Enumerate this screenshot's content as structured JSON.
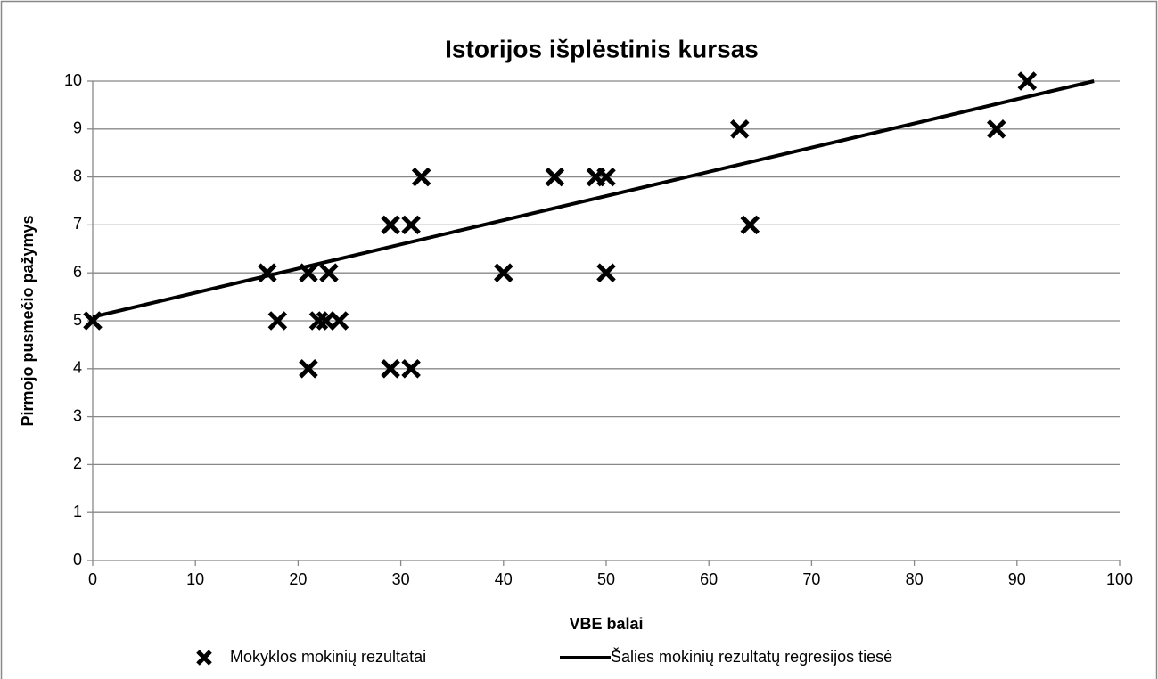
{
  "chart_data": {
    "type": "scatter",
    "title": "Istorijos išplėstinis kursas",
    "x_label": "VBE balai",
    "y_label": "Pirmojo pusmečio pažymys",
    "xlim": [
      0,
      100
    ],
    "xticks": [
      0,
      10,
      20,
      30,
      40,
      50,
      60,
      70,
      80,
      90,
      100
    ],
    "ylim": [
      0,
      10
    ],
    "yticks": [
      0,
      1,
      2,
      3,
      4,
      5,
      6,
      7,
      8,
      9,
      10
    ],
    "grid": true,
    "legend": "bottom",
    "series": [
      {
        "name": "Mokyklos mokinių rezultatai",
        "color": "#000000",
        "marker": "x",
        "x": [
          0,
          17,
          18,
          21,
          23,
          22,
          22.7,
          24,
          21,
          29,
          31,
          29,
          31,
          32,
          40,
          45,
          49,
          50,
          50,
          63,
          64,
          88,
          91
        ],
        "values": [
          5,
          6,
          5,
          6,
          6,
          5,
          5,
          5,
          4,
          7,
          7,
          4,
          4,
          8,
          6,
          8,
          8,
          8,
          6,
          9,
          7,
          9,
          10
        ]
      },
      {
        "name": "Šalies mokinių rezultatų regresijos tiesė",
        "color": "#000000",
        "marker": "line",
        "x": [
          0,
          97.5
        ],
        "values": [
          5.08,
          10
        ]
      }
    ]
  }
}
